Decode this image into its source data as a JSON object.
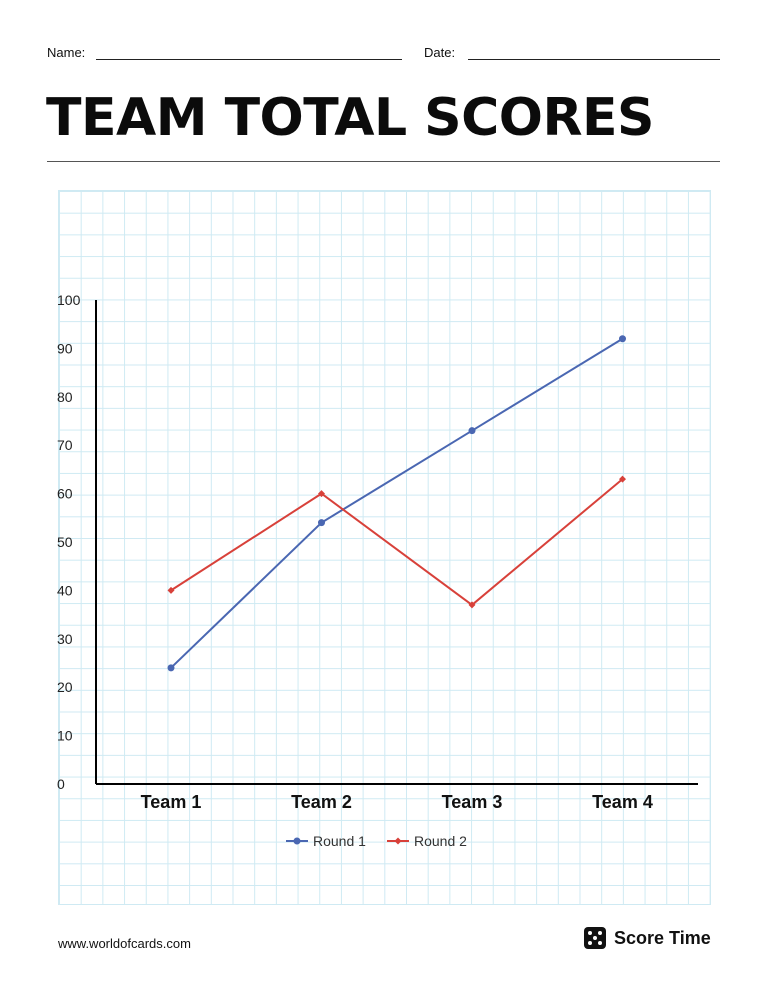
{
  "header": {
    "name_label": "Name:",
    "date_label": "Date:",
    "title": "TEAM TOTAL SCORES"
  },
  "chart_data": {
    "type": "line",
    "title": "",
    "xlabel": "",
    "ylabel": "",
    "categories": [
      "Team 1",
      "Team 2",
      "Team 3",
      "Team 4"
    ],
    "ylim": [
      0,
      100
    ],
    "yticks": [
      "0",
      "10",
      "20",
      "30",
      "40",
      "50",
      "60",
      "70",
      "80",
      "90",
      "100"
    ],
    "grid": true,
    "legend": "bottom",
    "series": [
      {
        "name": "Round 1",
        "values": [
          24,
          54,
          73,
          92
        ],
        "color": "#4a67b2",
        "marker": "circle"
      },
      {
        "name": "Round 2",
        "values": [
          40,
          60,
          37,
          63
        ],
        "color": "#d8413a",
        "marker": "diamond"
      }
    ]
  },
  "footer": {
    "url": "www.worldofcards.com",
    "brand": "Score Time",
    "brand_icon": "dice-icon"
  }
}
